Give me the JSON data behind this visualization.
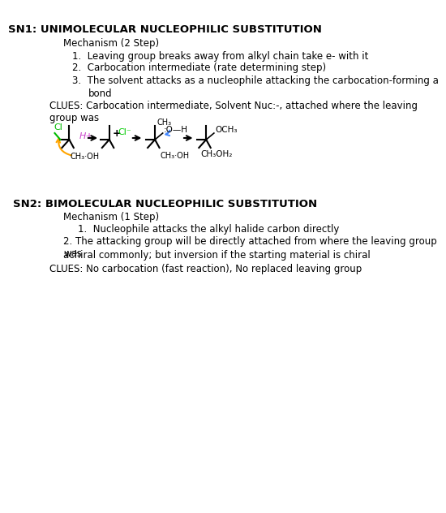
{
  "title1": "SN1: UNIMOLECULAR NUCLEOPHILIC SUBSTITUTION",
  "title2": "SN2: BIMOLECULAR NUCLEOPHILIC SUBSTITUTION",
  "bg_color": "#ffffff",
  "title_color": "#000000",
  "title_fontsize": 9.5,
  "body_fontsize": 8.5,
  "handwriting_font": "Comic Sans MS",
  "sn1_mechanism_header": "Mechanism (2 Step)",
  "sn1_steps": [
    "Leaving group breaks away from alkyl chain take e- with it",
    "Carbocation intermediate (rate determining step)",
    "The solvent attacks as a nucleophile attacking the carbocation-forming a\n\n     bond"
  ],
  "sn1_clues": "CLUES: Carbocation intermediate, Solvent Nuc:-, attached where the leaving group was",
  "sn2_mechanism_header": "Mechanism (1 Step)",
  "sn2_steps": [
    "Nucleophile attacks the alkyl halide carbon directly",
    "The attacking group will be directly attached from where the leaving group was\n\nachiral commonly; but inversion if the starting material is chiral"
  ],
  "sn2_clues": "CLUES: No carbocation (fast reaction), No replaced leaving group"
}
